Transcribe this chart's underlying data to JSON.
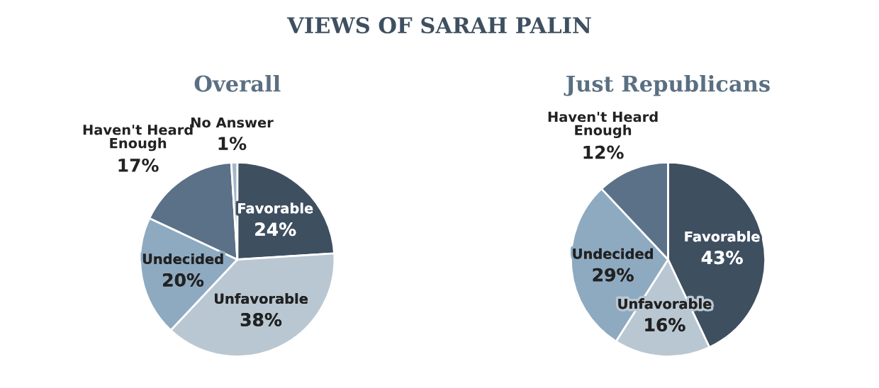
{
  "chart_data": [
    {
      "type": "pie",
      "title": "VIEWS OF SARAH PALIN",
      "subtitle": "Overall",
      "categories": [
        "Favorable",
        "Unfavorable",
        "Undecided",
        "Haven't Heard Enough",
        "No Answer"
      ],
      "values": [
        24,
        38,
        20,
        17,
        1
      ],
      "colors": [
        "#3e4f60",
        "#b9c7d2",
        "#8eaac1",
        "#5b7187",
        "#a3b7c9"
      ],
      "value_labels": [
        "24%",
        "38%",
        "20%",
        "17%",
        "1%"
      ]
    },
    {
      "type": "pie",
      "subtitle": "Just Republicans",
      "categories": [
        "Favorable",
        "Unfavorable",
        "Undecided",
        "Haven't Heard Enough"
      ],
      "values": [
        43,
        16,
        29,
        12
      ],
      "colors": [
        "#3e4f60",
        "#b9c7d2",
        "#8eaac1",
        "#5b7187"
      ],
      "value_labels": [
        "43%",
        "16%",
        "29%",
        "12%"
      ]
    }
  ]
}
